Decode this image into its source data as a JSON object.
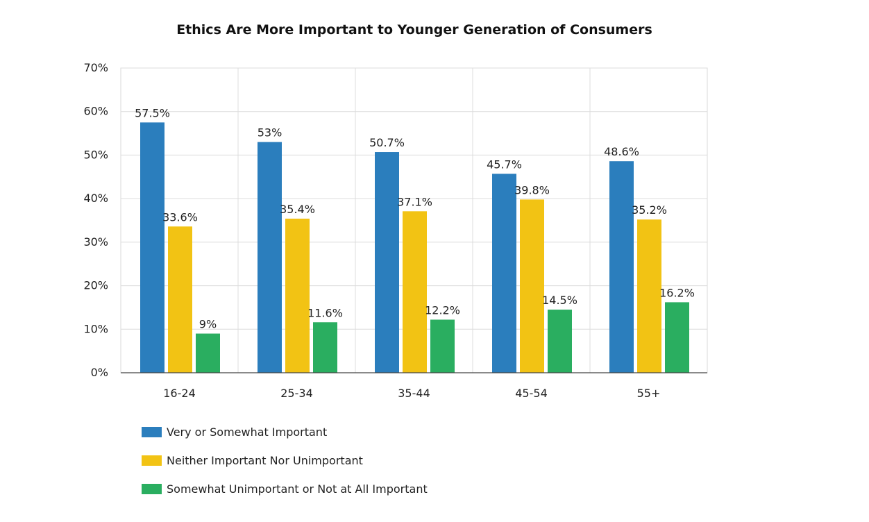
{
  "chart_data": {
    "type": "bar",
    "title": "Ethics Are More Important to Younger Generation of Consumers",
    "xlabel": "",
    "ylabel": "",
    "categories": [
      "16-24",
      "25-34",
      "35-44",
      "45-54",
      "55+"
    ],
    "ylim": [
      0,
      70
    ],
    "yticks": [
      "0%",
      "10%",
      "20%",
      "30%",
      "40%",
      "50%",
      "60%",
      "70%"
    ],
    "grid": true,
    "legend_position": "bottom-left",
    "series": [
      {
        "name": "Very or Somewhat Important",
        "color": "#2b7ebd",
        "values": [
          57.5,
          53,
          50.7,
          45.7,
          48.6
        ],
        "labels": [
          "57.5%",
          "53%",
          "50.7%",
          "45.7%",
          "48.6%"
        ]
      },
      {
        "name": "Neither Important Nor Unimportant",
        "color": "#f2c314",
        "values": [
          33.6,
          35.4,
          37.1,
          39.8,
          35.2
        ],
        "labels": [
          "33.6%",
          "35.4%",
          "37.1%",
          "39.8%",
          "35.2%"
        ]
      },
      {
        "name": "Somewhat Unimportant or Not at All Important",
        "color": "#2aae60",
        "values": [
          9,
          11.6,
          12.2,
          14.5,
          16.2
        ],
        "labels": [
          "9%",
          "11.6%",
          "12.2%",
          "14.5%",
          "16.2%"
        ]
      }
    ]
  }
}
